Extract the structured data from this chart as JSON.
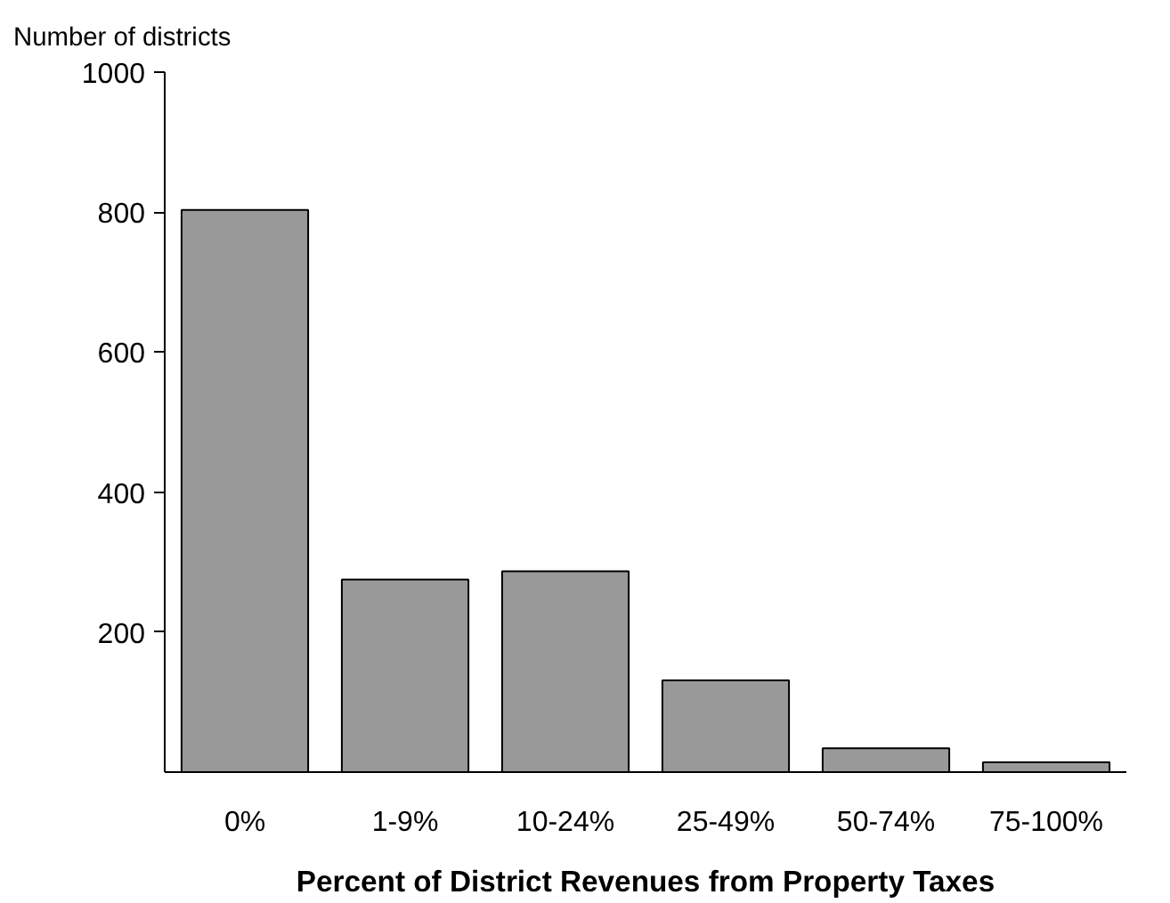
{
  "chart_data": {
    "type": "bar",
    "xlabel": "Percent of District Revenues from Property Taxes",
    "ylabel": "Number of districts",
    "categories": [
      "0%",
      "1-9%",
      "10-24%",
      "25-49%",
      "50-74%",
      "75-100%"
    ],
    "values": [
      803,
      275,
      287,
      131,
      34,
      14
    ],
    "color": "#999999",
    "ylim": [
      0,
      1000
    ],
    "yticks": [
      200,
      400,
      600,
      800,
      1000
    ],
    "grid": false
  }
}
